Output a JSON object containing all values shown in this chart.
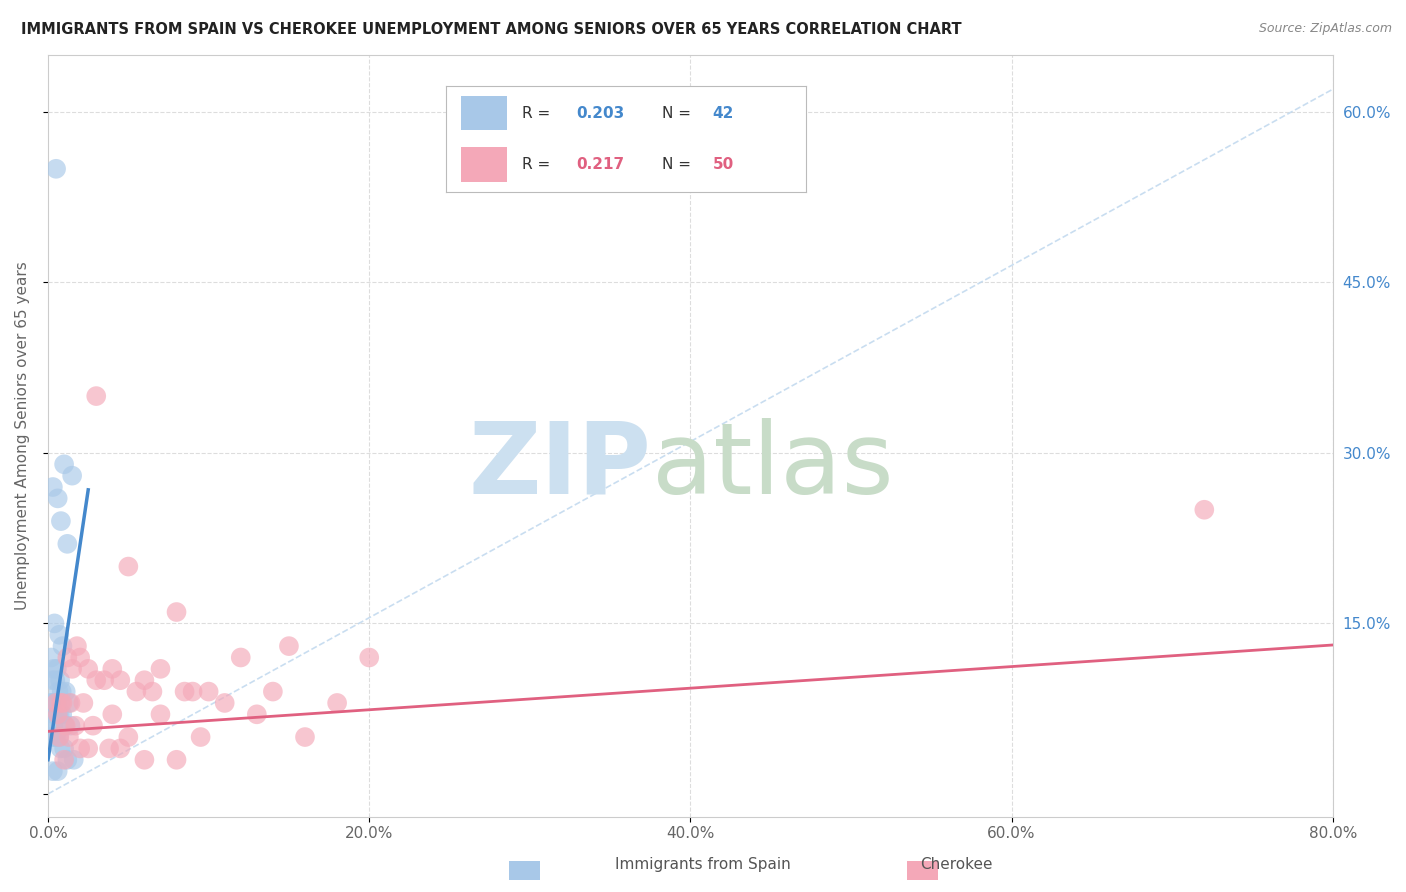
{
  "title": "IMMIGRANTS FROM SPAIN VS CHEROKEE UNEMPLOYMENT AMONG SENIORS OVER 65 YEARS CORRELATION CHART",
  "source": "Source: ZipAtlas.com",
  "ylabel": "Unemployment Among Seniors over 65 years",
  "x_tick_labels": [
    "0.0%",
    "20.0%",
    "40.0%",
    "60.0%",
    "80.0%"
  ],
  "x_tick_vals": [
    0,
    20,
    40,
    60,
    80
  ],
  "y_tick_labels_right": [
    "60.0%",
    "45.0%",
    "30.0%",
    "15.0%",
    ""
  ],
  "y_tick_vals_right": [
    60,
    45,
    30,
    15,
    0
  ],
  "xlim": [
    0,
    80
  ],
  "ylim": [
    -2,
    65
  ],
  "legend_r1": "0.203",
  "legend_n1": "42",
  "legend_r2": "0.217",
  "legend_n2": "50",
  "color_blue": "#a8c8e8",
  "color_pink": "#f4a8b8",
  "color_blue_line": "#4488cc",
  "color_pink_line": "#e06080",
  "color_dashed": "#c0d8ee",
  "scatter_blue_x": [
    0.5,
    1.0,
    1.5,
    0.3,
    0.6,
    0.8,
    1.2,
    0.4,
    0.7,
    0.9,
    0.2,
    0.35,
    0.55,
    0.75,
    0.25,
    0.45,
    0.65,
    0.85,
    1.1,
    1.3,
    0.15,
    0.28,
    0.42,
    0.58,
    0.72,
    0.38,
    0.62,
    0.88,
    1.05,
    1.4,
    0.18,
    0.32,
    0.52,
    0.68,
    0.22,
    0.48,
    0.78,
    1.0,
    1.2,
    1.6,
    0.3,
    0.6
  ],
  "scatter_blue_y": [
    55,
    29,
    28,
    27,
    26,
    24,
    22,
    15,
    14,
    13,
    12,
    11,
    11,
    10,
    10,
    10,
    9,
    9,
    9,
    8,
    8,
    8,
    8,
    8,
    7,
    7,
    7,
    7,
    6,
    6,
    6,
    6,
    5,
    5,
    5,
    5,
    4,
    4,
    3,
    3,
    2,
    2
  ],
  "scatter_pink_x": [
    3.0,
    5.0,
    8.0,
    12.0,
    15.0,
    20.0,
    2.0,
    4.0,
    7.0,
    10.0,
    1.5,
    2.5,
    4.5,
    6.0,
    9.0,
    14.0,
    18.0,
    0.8,
    1.2,
    1.8,
    3.5,
    6.5,
    3.0,
    5.5,
    8.5,
    11.0,
    0.5,
    0.9,
    1.4,
    2.2,
    4.0,
    7.0,
    13.0,
    0.6,
    1.1,
    1.7,
    2.8,
    5.0,
    9.5,
    16.0,
    0.7,
    1.3,
    2.5,
    4.5,
    3.8,
    2.0,
    1.0,
    6.0,
    8.0,
    72.0
  ],
  "scatter_pink_y": [
    35,
    20,
    16,
    12,
    13,
    12,
    12,
    11,
    11,
    9,
    11,
    11,
    10,
    10,
    9,
    9,
    8,
    8,
    12,
    13,
    10,
    9,
    10,
    9,
    9,
    8,
    8,
    8,
    8,
    8,
    7,
    7,
    7,
    7,
    6,
    6,
    6,
    5,
    5,
    5,
    5,
    5,
    4,
    4,
    4,
    4,
    3,
    3,
    3,
    25
  ],
  "blue_line_x": [
    0.0,
    2.5
  ],
  "blue_line_y_start": 3.0,
  "blue_line_slope": 9.5,
  "pink_line_x": [
    0.0,
    80.0
  ],
  "pink_line_y_start": 5.5,
  "pink_line_slope": 0.095
}
